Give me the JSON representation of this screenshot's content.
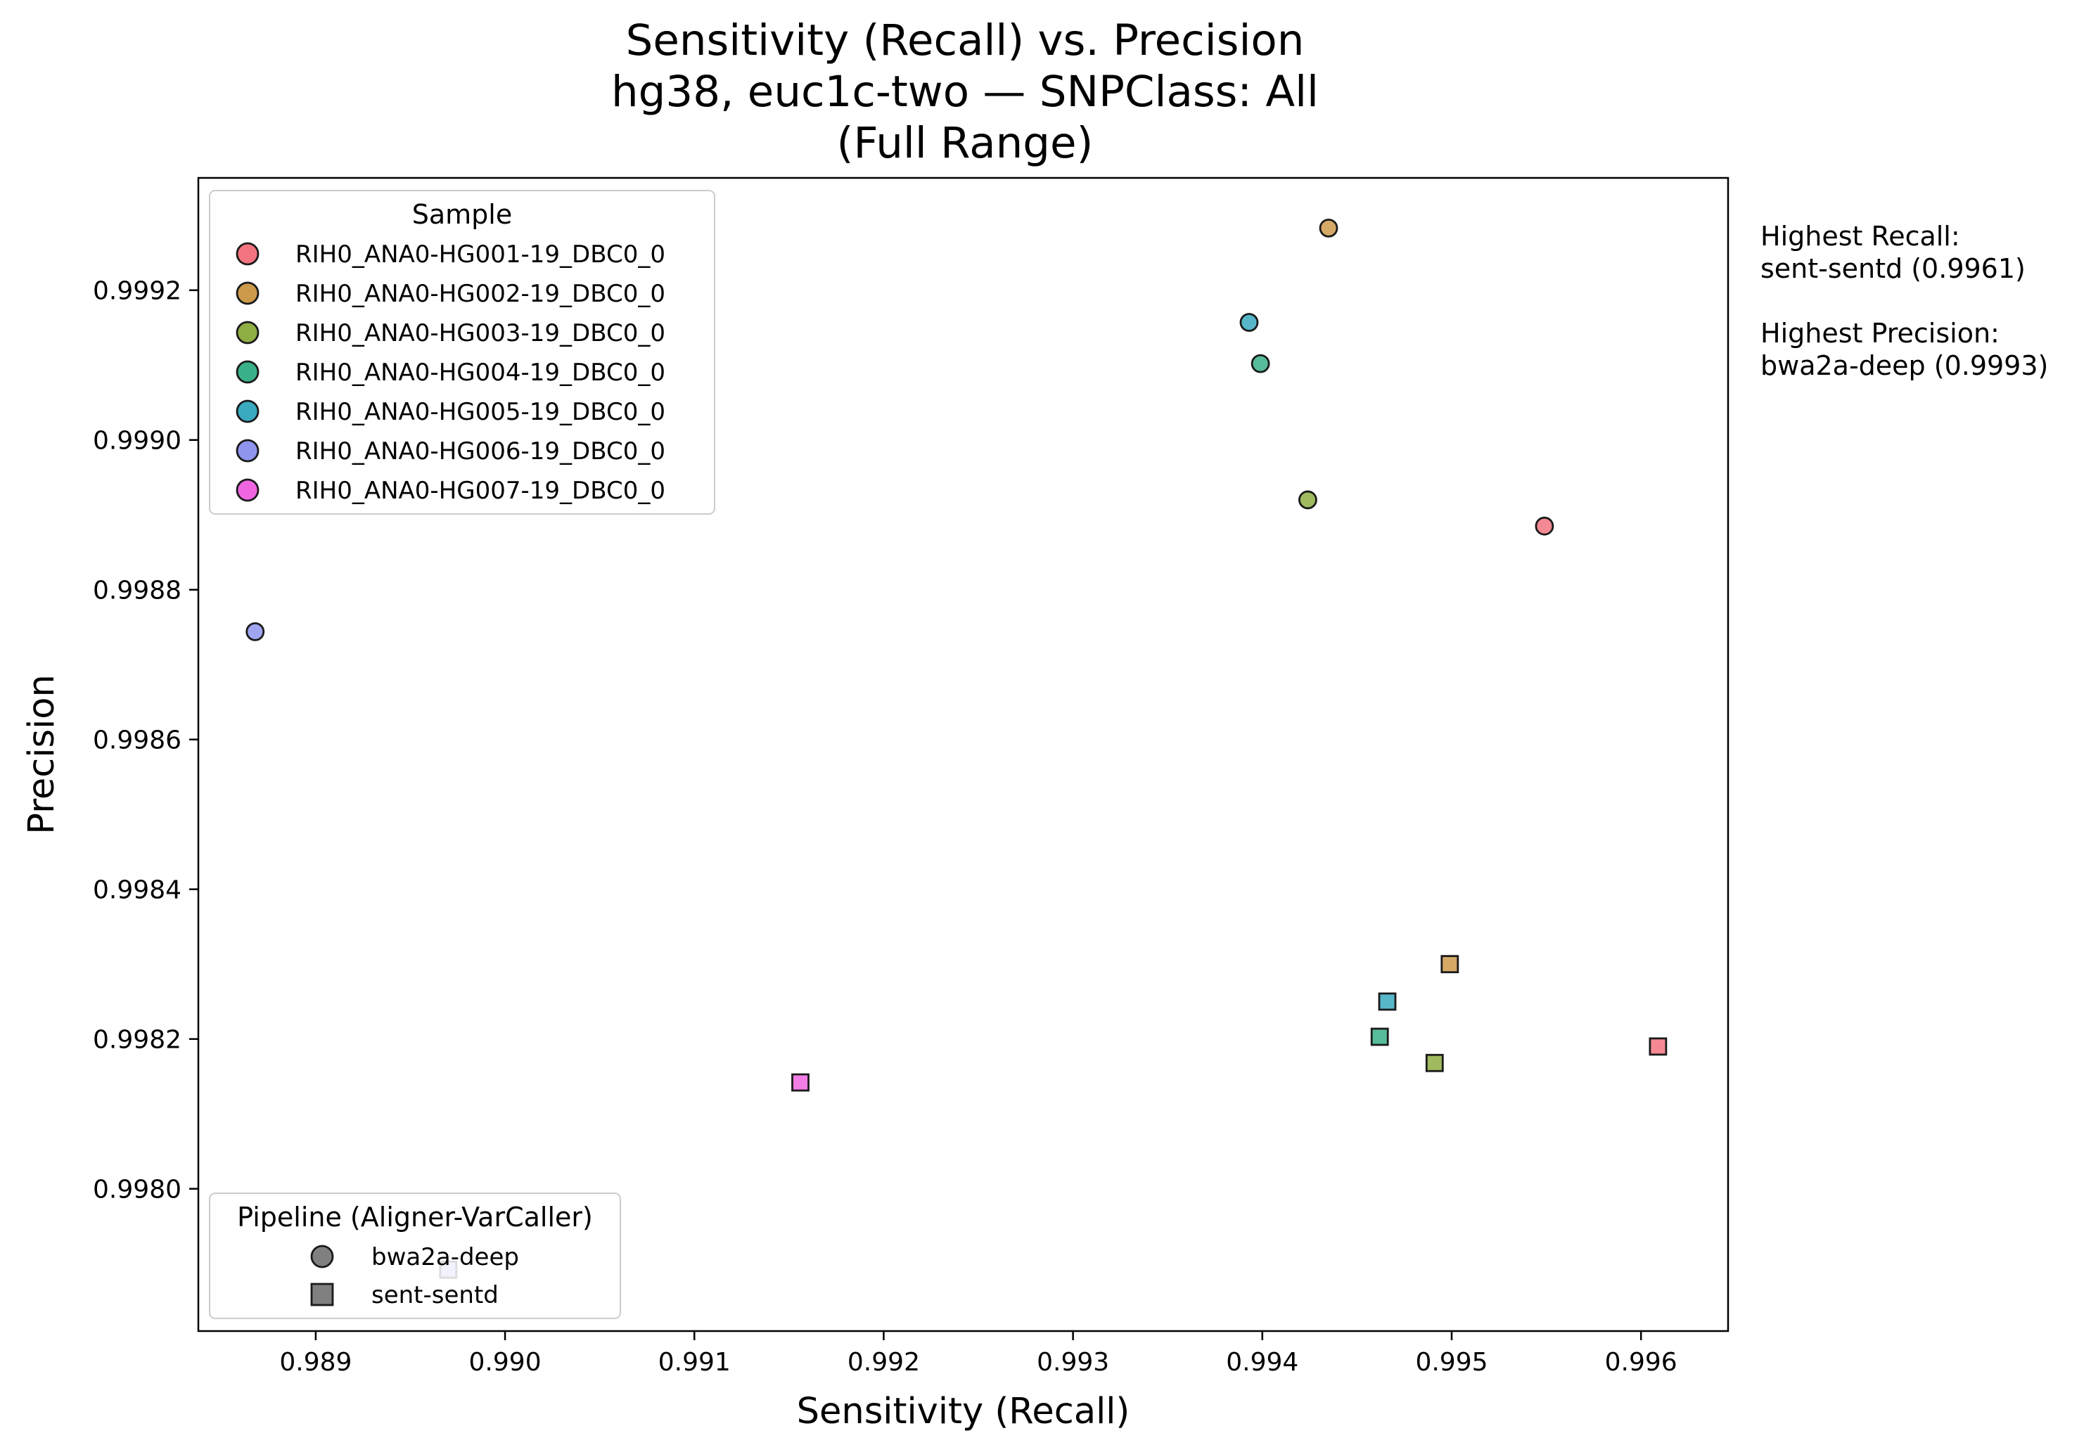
{
  "title": {
    "line1": "Sensitivity (Recall) vs. Precision",
    "line2": "hg38, euc1c-two — SNPClass: All",
    "line3": "(Full Range)"
  },
  "side_notes": {
    "recall_label": "Highest Recall:",
    "recall_value": "sent-sentd (0.9961)",
    "precision_label": "Highest Precision:",
    "precision_value": "bwa2a-deep (0.9993)"
  },
  "chart_data": {
    "type": "scatter",
    "xlabel": "Sensitivity (Recall)",
    "ylabel": "Precision",
    "xlim": [
      0.98838,
      0.99646
    ],
    "ylim": [
      0.99781,
      0.99935
    ],
    "x_ticks": [
      "0.989",
      "0.990",
      "0.991",
      "0.992",
      "0.993",
      "0.994",
      "0.995",
      "0.996"
    ],
    "x_tick_values": [
      0.989,
      0.99,
      0.991,
      0.992,
      0.993,
      0.994,
      0.995,
      0.996
    ],
    "y_ticks": [
      "0.9980",
      "0.9982",
      "0.9984",
      "0.9986",
      "0.9988",
      "0.9990",
      "0.9992"
    ],
    "y_tick_values": [
      0.998,
      0.9982,
      0.9984,
      0.9986,
      0.9988,
      0.999,
      0.9992
    ],
    "grid": false,
    "sample_legend": {
      "title": "Sample",
      "placement": "upper-left",
      "entries": [
        {
          "name": "RIH0_ANA0-HG001-19_DBC0_0",
          "color": "#f37480"
        },
        {
          "name": "RIH0_ANA0-HG002-19_DBC0_0",
          "color": "#cc9a4b"
        },
        {
          "name": "RIH0_ANA0-HG003-19_DBC0_0",
          "color": "#8fae44"
        },
        {
          "name": "RIH0_ANA0-HG004-19_DBC0_0",
          "color": "#3ab08a"
        },
        {
          "name": "RIH0_ANA0-HG005-19_DBC0_0",
          "color": "#39aac0"
        },
        {
          "name": "RIH0_ANA0-HG006-19_DBC0_0",
          "color": "#8f95ee"
        },
        {
          "name": "RIH0_ANA0-HG007-19_DBC0_0",
          "color": "#f066e0"
        }
      ]
    },
    "pipeline_legend": {
      "title": "Pipeline (Aligner-VarCaller)",
      "placement": "lower-left",
      "entries": [
        {
          "name": "bwa2a-deep",
          "marker": "circle"
        },
        {
          "name": "sent-sentd",
          "marker": "square"
        }
      ]
    },
    "points": [
      {
        "sample": 0,
        "pipeline": "bwa2a-deep",
        "x": 0.99549,
        "y": 0.998885
      },
      {
        "sample": 1,
        "pipeline": "bwa2a-deep",
        "x": 0.99435,
        "y": 0.999283
      },
      {
        "sample": 2,
        "pipeline": "bwa2a-deep",
        "x": 0.99424,
        "y": 0.99892
      },
      {
        "sample": 3,
        "pipeline": "bwa2a-deep",
        "x": 0.99399,
        "y": 0.999102
      },
      {
        "sample": 4,
        "pipeline": "bwa2a-deep",
        "x": 0.99393,
        "y": 0.999157
      },
      {
        "sample": 5,
        "pipeline": "bwa2a-deep",
        "x": 0.98868,
        "y": 0.998744
      },
      {
        "sample": 0,
        "pipeline": "sent-sentd",
        "x": 0.99609,
        "y": 0.99819
      },
      {
        "sample": 1,
        "pipeline": "sent-sentd",
        "x": 0.99499,
        "y": 0.9983
      },
      {
        "sample": 2,
        "pipeline": "sent-sentd",
        "x": 0.99491,
        "y": 0.998168
      },
      {
        "sample": 3,
        "pipeline": "sent-sentd",
        "x": 0.99462,
        "y": 0.998203
      },
      {
        "sample": 4,
        "pipeline": "sent-sentd",
        "x": 0.99466,
        "y": 0.99825
      },
      {
        "sample": 5,
        "pipeline": "sent-sentd",
        "x": 0.9897,
        "y": 0.997892
      },
      {
        "sample": 6,
        "pipeline": "sent-sentd",
        "x": 0.99156,
        "y": 0.998142
      }
    ],
    "marker_legend_color": "#808080"
  }
}
